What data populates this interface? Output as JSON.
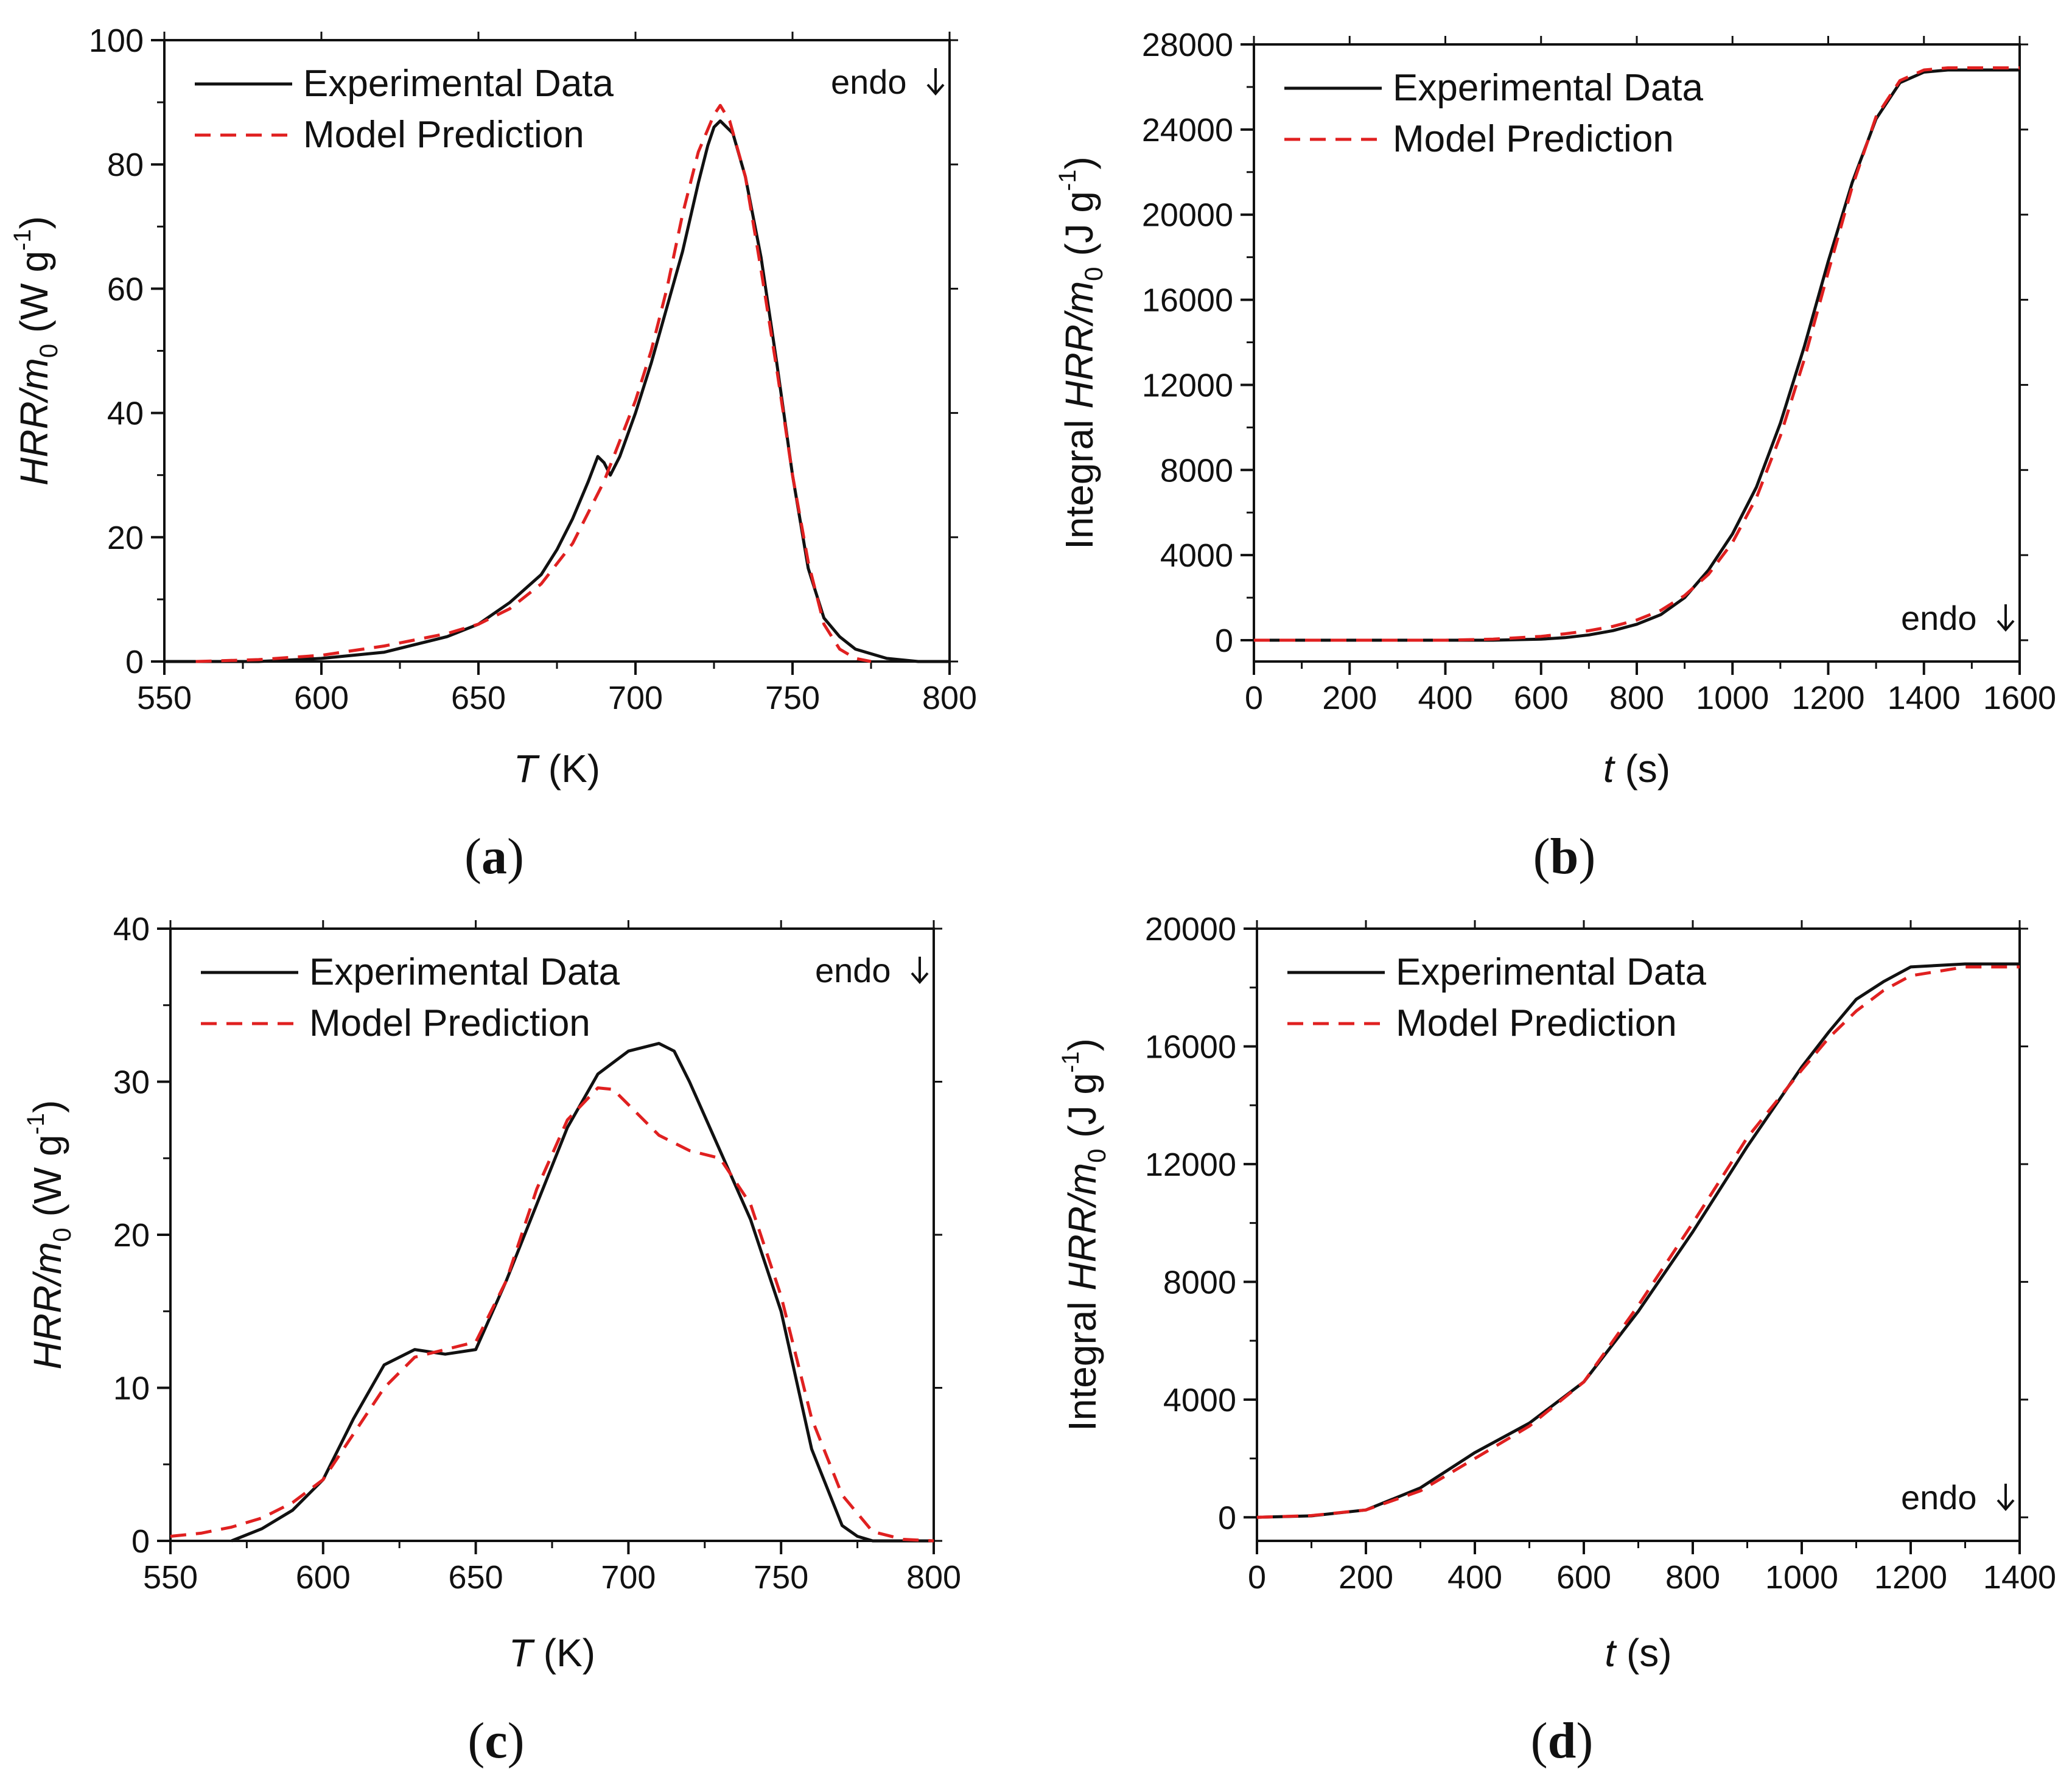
{
  "colors": {
    "experimental": "#111111",
    "model": "#e02020",
    "axis": "#111111"
  },
  "chart_data": [
    {
      "id": "a",
      "type": "line",
      "panel_label": [
        "(",
        "a",
        ")"
      ],
      "xlabel": {
        "italic": "T",
        "rest": " (K)"
      },
      "ylabel": {
        "italic": "HRR/m",
        "sub": "0",
        "rest1": " (W g",
        "sup": "-1",
        "rest2": ")"
      },
      "xlim": [
        550,
        800
      ],
      "ylim": [
        0,
        100
      ],
      "xticks": [
        550,
        600,
        650,
        700,
        750,
        800
      ],
      "yticks": [
        0,
        20,
        40,
        60,
        80,
        100
      ],
      "legend": {
        "position": "top-left",
        "entries": [
          "Experimental Data",
          "Model Prediction"
        ]
      },
      "annotation": "endo",
      "annotation_position": "top-right",
      "series": [
        {
          "name": "Experimental Data",
          "style": "solid",
          "x": [
            550,
            580,
            600,
            620,
            640,
            650,
            660,
            670,
            675,
            680,
            685,
            688,
            690,
            692,
            695,
            700,
            705,
            710,
            715,
            720,
            723,
            725,
            727,
            729,
            731,
            735,
            740,
            745,
            750,
            755,
            760,
            765,
            770,
            780,
            790,
            800
          ],
          "y": [
            0,
            0,
            0.5,
            1.5,
            4,
            6,
            9.5,
            14,
            18,
            23,
            29,
            33,
            32,
            30,
            33,
            40,
            48,
            57,
            66,
            77,
            83,
            86,
            87,
            86,
            85,
            78,
            65,
            48,
            30,
            15,
            7,
            4,
            2,
            0.5,
            0,
            0
          ]
        },
        {
          "name": "Model Prediction",
          "style": "dashed",
          "x": [
            560,
            580,
            600,
            620,
            640,
            650,
            660,
            670,
            680,
            690,
            700,
            705,
            710,
            715,
            720,
            725,
            727,
            730,
            735,
            740,
            745,
            750,
            755,
            760,
            765,
            770,
            775
          ],
          "y": [
            0,
            0.3,
            1,
            2.5,
            4.5,
            6,
            8.5,
            12.5,
            19,
            29,
            42,
            50,
            60,
            72,
            82,
            88,
            89.5,
            87,
            78,
            63,
            47,
            30,
            16,
            6,
            2,
            0.5,
            0
          ]
        }
      ]
    },
    {
      "id": "b",
      "type": "line",
      "panel_label": [
        "(",
        "b",
        ")"
      ],
      "xlabel": {
        "italic": "t",
        "rest": " (s)"
      },
      "ylabel": {
        "prefix": "Integral ",
        "italic": "HRR/m",
        "sub": "0",
        "rest1": " (J g",
        "sup": "-1",
        "rest2": ")"
      },
      "xlim": [
        0,
        1600
      ],
      "ylim": [
        -1000,
        28000
      ],
      "xticks": [
        0,
        200,
        400,
        600,
        800,
        1000,
        1200,
        1400,
        1600
      ],
      "yticks": [
        0,
        4000,
        8000,
        12000,
        16000,
        20000,
        24000,
        28000
      ],
      "legend": {
        "position": "top-left",
        "entries": [
          "Experimental Data",
          "Model Prediction"
        ]
      },
      "annotation": "endo",
      "annotation_position": "bottom-right",
      "series": [
        {
          "name": "Experimental Data",
          "style": "solid",
          "x": [
            0,
            200,
            400,
            500,
            600,
            650,
            700,
            750,
            800,
            850,
            900,
            950,
            1000,
            1050,
            1100,
            1150,
            1200,
            1250,
            1300,
            1350,
            1400,
            1450,
            1500,
            1600
          ],
          "y": [
            0,
            0,
            0,
            0,
            50,
            120,
            250,
            450,
            750,
            1200,
            2000,
            3300,
            5000,
            7200,
            10200,
            13800,
            17800,
            21500,
            24500,
            26200,
            26700,
            26800,
            26800,
            26800
          ]
        },
        {
          "name": "Model Prediction",
          "style": "dashed",
          "x": [
            0,
            200,
            400,
            500,
            600,
            650,
            700,
            750,
            800,
            850,
            900,
            950,
            1000,
            1050,
            1100,
            1150,
            1200,
            1250,
            1300,
            1350,
            1400,
            1450,
            1500,
            1600
          ],
          "y": [
            0,
            0,
            0,
            50,
            180,
            300,
            450,
            650,
            950,
            1400,
            2100,
            3100,
            4600,
            6700,
            9600,
            13200,
            17300,
            21300,
            24600,
            26300,
            26800,
            26900,
            26900,
            26900
          ]
        }
      ]
    },
    {
      "id": "c",
      "type": "line",
      "panel_label": [
        "(",
        "c",
        ")"
      ],
      "xlabel": {
        "italic": "T",
        "rest": " (K)"
      },
      "ylabel": {
        "italic": "HRR/m",
        "sub": "0",
        "rest1": " (W g",
        "sup": "-1",
        "rest2": ")"
      },
      "xlim": [
        550,
        800
      ],
      "ylim": [
        0,
        40
      ],
      "xticks": [
        550,
        600,
        650,
        700,
        750,
        800
      ],
      "yticks": [
        0,
        10,
        20,
        30,
        40
      ],
      "legend": {
        "position": "top-left",
        "entries": [
          "Experimental Data",
          "Model Prediction"
        ]
      },
      "annotation": "endo",
      "annotation_position": "top-right",
      "series": [
        {
          "name": "Experimental Data",
          "style": "solid",
          "x": [
            570,
            580,
            590,
            600,
            610,
            620,
            630,
            640,
            650,
            660,
            670,
            680,
            690,
            700,
            710,
            715,
            720,
            730,
            740,
            750,
            760,
            770,
            775,
            780,
            790,
            800
          ],
          "y": [
            0,
            0.8,
            2,
            4,
            8,
            11.5,
            12.5,
            12.2,
            12.5,
            17,
            22,
            27,
            30.5,
            32,
            32.5,
            32,
            30,
            25.5,
            21,
            15,
            6,
            1,
            0.3,
            0,
            0,
            0
          ]
        },
        {
          "name": "Model Prediction",
          "style": "dashed",
          "x": [
            550,
            560,
            570,
            580,
            590,
            600,
            610,
            620,
            630,
            640,
            650,
            660,
            670,
            680,
            690,
            695,
            700,
            710,
            720,
            730,
            740,
            750,
            760,
            770,
            780,
            790,
            800
          ],
          "y": [
            0.3,
            0.5,
            0.9,
            1.5,
            2.5,
            4,
            7,
            10,
            12,
            12.5,
            13,
            17,
            23,
            27.5,
            29.6,
            29.5,
            28.5,
            26.5,
            25.5,
            25,
            22,
            16,
            8,
            3,
            0.6,
            0.1,
            0
          ]
        }
      ]
    },
    {
      "id": "d",
      "type": "line",
      "panel_label": [
        "(",
        "d",
        ")"
      ],
      "xlabel": {
        "italic": "t",
        "rest": " (s)"
      },
      "ylabel": {
        "prefix": "Integral ",
        "italic": "HRR/m",
        "sub": "0",
        "rest1": " (J g",
        "sup": "-1",
        "rest2": ")"
      },
      "xlim": [
        0,
        1400
      ],
      "ylim": [
        -800,
        20000
      ],
      "xticks": [
        0,
        200,
        400,
        600,
        800,
        1000,
        1200,
        1400
      ],
      "yticks": [
        0,
        4000,
        8000,
        12000,
        16000,
        20000
      ],
      "legend": {
        "position": "top-left",
        "entries": [
          "Experimental Data",
          "Model Prediction"
        ]
      },
      "annotation": "endo",
      "annotation_position": "bottom-right",
      "series": [
        {
          "name": "Experimental Data",
          "style": "solid",
          "x": [
            0,
            100,
            200,
            300,
            400,
            500,
            600,
            700,
            800,
            900,
            1000,
            1050,
            1100,
            1150,
            1200,
            1300,
            1400
          ],
          "y": [
            0,
            50,
            250,
            1000,
            2200,
            3200,
            4600,
            7000,
            9700,
            12600,
            15300,
            16500,
            17600,
            18200,
            18700,
            18800,
            18800
          ]
        },
        {
          "name": "Model Prediction",
          "style": "dashed",
          "x": [
            0,
            100,
            200,
            300,
            400,
            500,
            600,
            700,
            800,
            900,
            1000,
            1050,
            1100,
            1150,
            1200,
            1300,
            1400
          ],
          "y": [
            0,
            60,
            250,
            900,
            2000,
            3100,
            4600,
            7200,
            10000,
            12900,
            15200,
            16300,
            17200,
            17900,
            18400,
            18700,
            18700
          ]
        }
      ]
    }
  ]
}
